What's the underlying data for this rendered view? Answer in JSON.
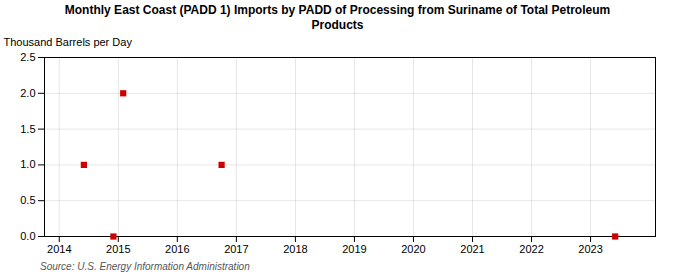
{
  "chart_data": {
    "type": "scatter",
    "title": "Monthly East Coast (PADD 1) Imports by PADD of Processing from Suriname of Total Petroleum\nProducts",
    "ylabel": "Thousand Barrels per Day",
    "source": "Source: U.S. Energy Information Administration",
    "x": [
      2014.417,
      2014.917,
      2015.083,
      2016.75,
      2023.417
    ],
    "values": [
      1.0,
      0.0,
      2.0,
      1.0,
      0.0
    ],
    "color": "#cc0000",
    "marker": "square",
    "xlim": [
      2013.75,
      2024.1
    ],
    "ylim": [
      0.0,
      2.5
    ],
    "xticks": [
      2014,
      2015,
      2016,
      2017,
      2018,
      2019,
      2020,
      2021,
      2022,
      2023
    ],
    "yticks": [
      {
        "value": 0.0,
        "label": "0.0"
      },
      {
        "value": 0.5,
        "label": "0.5"
      },
      {
        "value": 1.0,
        "label": "1.0"
      },
      {
        "value": 1.5,
        "label": "1.5"
      },
      {
        "value": 2.0,
        "label": "2.0"
      },
      {
        "value": 2.5,
        "label": "2.5"
      }
    ],
    "grid": true
  }
}
